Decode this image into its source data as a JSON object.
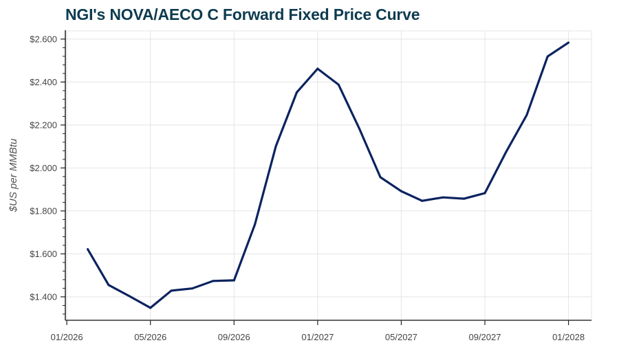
{
  "chart_data": {
    "type": "line",
    "title": "NGI's NOVA/AECO C Forward Fixed Price Curve",
    "xlabel": "",
    "ylabel": "$US per MMBtu",
    "ylim": [
      1.291,
      2.638
    ],
    "xlim_months_from_2026_01": [
      -0.07,
      25.1
    ],
    "grid": true,
    "line_color": "#0b2360",
    "y_ticks": [
      1.4,
      1.6,
      1.8,
      2.0,
      2.2,
      2.4,
      2.6
    ],
    "y_tick_labels": [
      "$1.400",
      "$1.600",
      "$1.800",
      "$2.000",
      "$2.200",
      "$2.400",
      "$2.600"
    ],
    "x_ticks_months_from_2026_01": [
      0,
      4,
      8,
      12,
      16,
      20,
      24
    ],
    "x_tick_labels": [
      "01/2026",
      "05/2026",
      "09/2026",
      "01/2027",
      "05/2027",
      "09/2027",
      "01/2028"
    ],
    "series": [
      {
        "name": "NOVA/AECO C",
        "x": [
          "02/2026",
          "03/2026",
          "04/2026",
          "05/2026",
          "06/2026",
          "07/2026",
          "08/2026",
          "09/2026",
          "10/2026",
          "11/2026",
          "12/2026",
          "01/2027",
          "02/2027",
          "03/2027",
          "04/2027",
          "05/2027",
          "06/2027",
          "07/2027",
          "08/2027",
          "09/2027",
          "10/2027",
          "11/2027",
          "12/2027",
          "01/2028"
        ],
        "months_from_2026_01": [
          1,
          2,
          3,
          4,
          5,
          6,
          7,
          8,
          9,
          10,
          11,
          12,
          13,
          14,
          15,
          16,
          17,
          18,
          19,
          20,
          21,
          22,
          23,
          24
        ],
        "values": [
          1.622,
          1.455,
          1.403,
          1.349,
          1.429,
          1.439,
          1.474,
          1.477,
          1.738,
          2.101,
          2.352,
          2.462,
          2.388,
          2.182,
          1.957,
          1.892,
          1.847,
          1.863,
          1.857,
          1.883,
          2.072,
          2.246,
          2.519,
          2.584
        ]
      }
    ]
  }
}
